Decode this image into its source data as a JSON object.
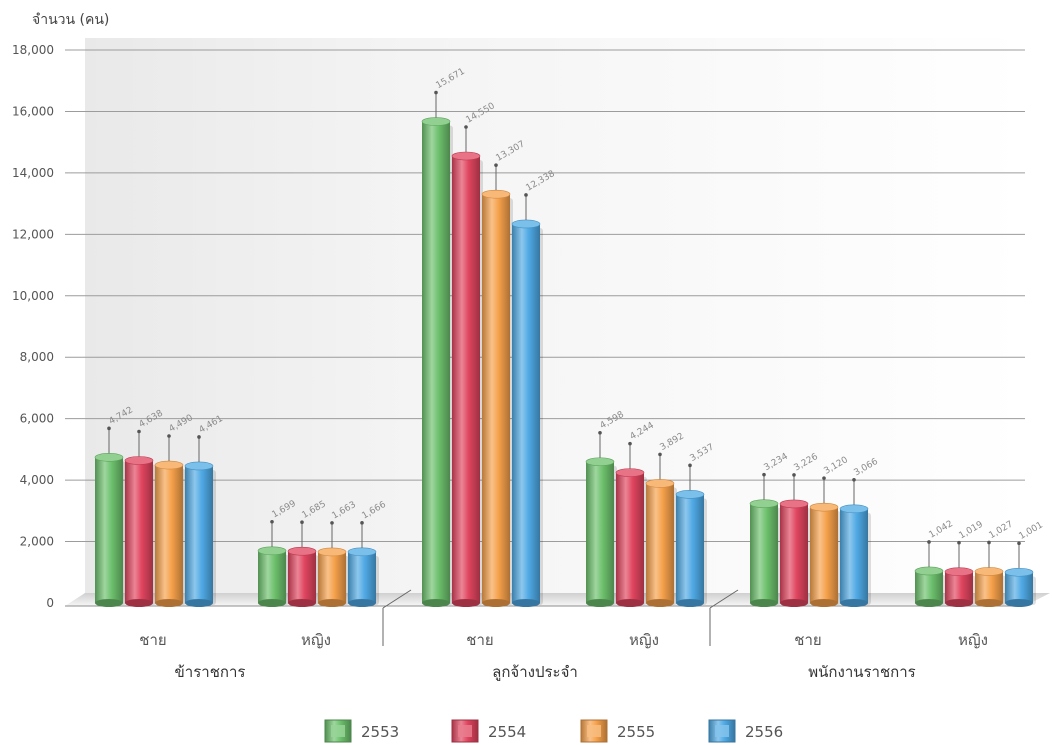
{
  "chart_data": {
    "type": "bar",
    "ylabel": "จำนวน (คน)",
    "ylim": [
      0,
      18000
    ],
    "yticks": [
      0,
      2000,
      4000,
      6000,
      8000,
      10000,
      12000,
      14000,
      16000,
      18000
    ],
    "ytick_labels": [
      "0",
      "2,000",
      "4,000",
      "6,000",
      "8,000",
      "10,000",
      "12,000",
      "14,000",
      "16,000",
      "18,000"
    ],
    "groups": [
      "ข้าราชการ",
      "ลูกจ้างประจำ",
      "พนักงานราชการ"
    ],
    "categories": [
      "ชาย",
      "หญิง",
      "ชาย",
      "หญิง",
      "ชาย",
      "หญิง"
    ],
    "series": [
      {
        "name": "2553",
        "color": "#6cc06c",
        "values": [
          4742,
          1699,
          15671,
          4598,
          3234,
          1042
        ],
        "labels": [
          "4,742",
          "1,699",
          "15,671",
          "4,598",
          "3,234",
          "1,042"
        ]
      },
      {
        "name": "2554",
        "color": "#e0445e",
        "values": [
          4638,
          1685,
          14550,
          4244,
          3226,
          1019
        ],
        "labels": [
          "4,638",
          "1,685",
          "14,550",
          "4,244",
          "3,226",
          "1,019"
        ]
      },
      {
        "name": "2555",
        "color": "#f5a04a",
        "values": [
          4490,
          1663,
          13307,
          3892,
          3120,
          1027
        ],
        "labels": [
          "4,490",
          "1,663",
          "13,307",
          "3,892",
          "3,120",
          "1,027"
        ]
      },
      {
        "name": "2556",
        "color": "#4fa9e4",
        "values": [
          4461,
          1666,
          12338,
          3537,
          3066,
          1001
        ],
        "labels": [
          "4,461",
          "1,666",
          "12,338",
          "3,537",
          "3,066",
          "1,001"
        ]
      }
    ],
    "grid": true,
    "legend": "bottom"
  }
}
